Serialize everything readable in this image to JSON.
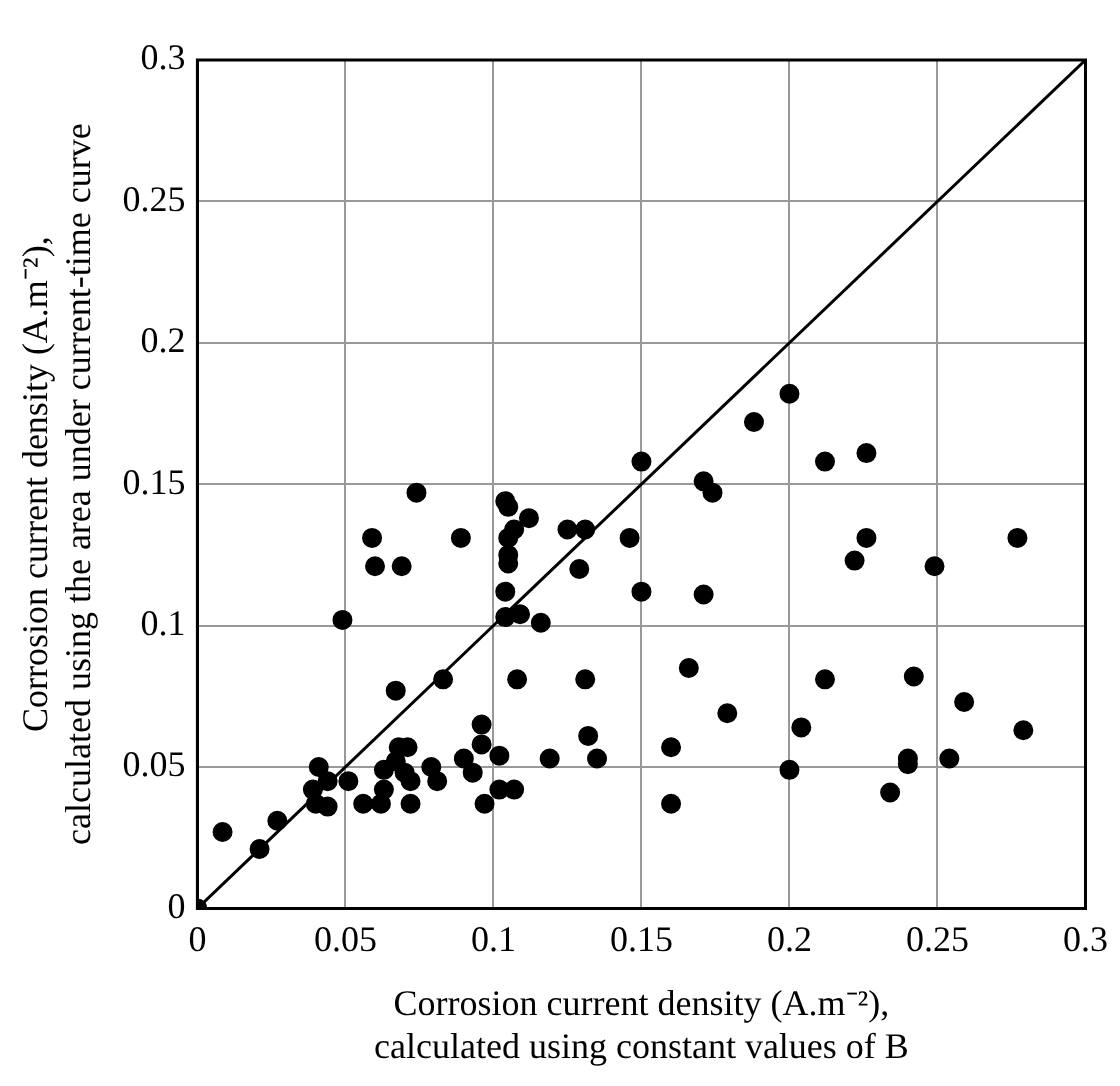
{
  "chart_data": {
    "type": "scatter",
    "xlabel": "Corrosion current density (A.m⁻²),\ncalculated using constant values of B",
    "ylabel": "Corrosion current density (A.m⁻²),\ncalculated using the area under current-time curve",
    "xlim": [
      0,
      0.3
    ],
    "ylim": [
      0,
      0.3
    ],
    "xticks": [
      0,
      0.05,
      0.1,
      0.15,
      0.2,
      0.25,
      0.3
    ],
    "yticks": [
      0,
      0.05,
      0.1,
      0.15,
      0.2,
      0.25,
      0.3
    ],
    "grid": true,
    "marker": "circle",
    "series": [
      {
        "type": "scatter",
        "color": "#000000",
        "x": [
          0,
          0.0085,
          0.021,
          0.027,
          0.041,
          0.039,
          0.044,
          0.04,
          0.044,
          0.051,
          0.049,
          0.059,
          0.06,
          0.069,
          0.089,
          0.067,
          0.083,
          0.056,
          0.062,
          0.063,
          0.063,
          0.068,
          0.071,
          0.067,
          0.07,
          0.072,
          0.072,
          0.079,
          0.081,
          0.09,
          0.093,
          0.096,
          0.096,
          0.102,
          0.097,
          0.102,
          0.15,
          0.074,
          0.104,
          0.105,
          0.112,
          0.107,
          0.125,
          0.131,
          0.146,
          0.105,
          0.105,
          0.105,
          0.129,
          0.104,
          0.15,
          0.104,
          0.109,
          0.116,
          0.2,
          0.188,
          0.171,
          0.174,
          0.212,
          0.226,
          0.226,
          0.277,
          0.222,
          0.249,
          0.171,
          0.108,
          0.131,
          0.166,
          0.212,
          0.242,
          0.259,
          0.179,
          0.204,
          0.279,
          0.132,
          0.16,
          0.119,
          0.135,
          0.2,
          0.24,
          0.24,
          0.254,
          0.234,
          0.16,
          0.107
        ],
        "values": [
          0,
          0.027,
          0.021,
          0.031,
          0.05,
          0.042,
          0.045,
          0.037,
          0.036,
          0.045,
          0.102,
          0.131,
          0.121,
          0.121,
          0.131,
          0.077,
          0.081,
          0.037,
          0.037,
          0.042,
          0.049,
          0.057,
          0.057,
          0.052,
          0.048,
          0.045,
          0.037,
          0.05,
          0.045,
          0.053,
          0.048,
          0.065,
          0.058,
          0.054,
          0.037,
          0.042,
          0.158,
          0.147,
          0.144,
          0.142,
          0.138,
          0.134,
          0.134,
          0.134,
          0.131,
          0.131,
          0.125,
          0.122,
          0.12,
          0.112,
          0.112,
          0.103,
          0.104,
          0.101,
          0.182,
          0.172,
          0.151,
          0.147,
          0.158,
          0.161,
          0.131,
          0.131,
          0.123,
          0.121,
          0.111,
          0.081,
          0.081,
          0.085,
          0.081,
          0.082,
          0.073,
          0.069,
          0.064,
          0.063,
          0.061,
          0.057,
          0.053,
          0.053,
          0.049,
          0.053,
          0.051,
          0.053,
          0.041,
          0.037,
          0.042
        ]
      },
      {
        "type": "line",
        "color": "#000000",
        "x": [
          0,
          0.3
        ],
        "values": [
          0,
          0.3
        ],
        "marker": "none",
        "line_style": "solid"
      }
    ]
  }
}
